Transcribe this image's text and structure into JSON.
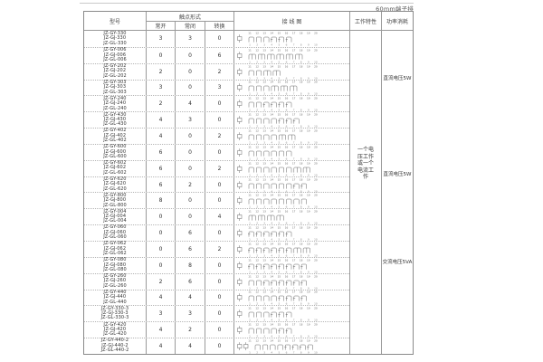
{
  "page": {
    "top_right_label": "60mm端子排"
  },
  "table": {
    "headers": {
      "model": "型号",
      "contact_form": "触点形式",
      "normally_open": "常开",
      "normally_closed": "常闭",
      "changeover": "转换",
      "wiring_diagram": "接 线 图",
      "working_characteristics": "工作特性",
      "power_consumption": "功率消耗"
    },
    "working_characteristics_text": "一个电压工作或一个电流工作",
    "power_notes": [
      "直流电压5W",
      "直流电压5W",
      "交流电压5VA"
    ],
    "diagram": {
      "top_terminals": [
        "11",
        "12",
        "13",
        "14",
        "15",
        "16",
        "17",
        "18",
        "19",
        "20"
      ],
      "bottom_terminals": [
        "1",
        "2",
        "3",
        "4",
        "5",
        "6",
        "7",
        "8",
        "9",
        "10"
      ],
      "coil_icon": "coil-square",
      "no_icon": "normally-open-contact",
      "nc_icon": "normally-closed-contact",
      "co_icon": "changeover-contact"
    },
    "rows": [
      {
        "models": [
          "JZ-GY-330",
          "JZ-GJ-330",
          "JZ-GL-330"
        ],
        "no": 3,
        "nc": 3,
        "co": 0,
        "coils": 1
      },
      {
        "models": [
          "JZ-GY-006",
          "JZ-GJ-006",
          "JZ-GL-006"
        ],
        "no": 0,
        "nc": 0,
        "co": 6,
        "coils": 1
      },
      {
        "models": [
          "JZ-GY-202",
          "JZ-GJ-202",
          "JZ-GL-202"
        ],
        "no": 2,
        "nc": 0,
        "co": 2,
        "coils": 1
      },
      {
        "models": [
          "JZ-GY-303",
          "JZ-GJ-303",
          "JZ-GL-303"
        ],
        "no": 3,
        "nc": 0,
        "co": 3,
        "coils": 1
      },
      {
        "models": [
          "JZ-GY-240",
          "JZ-GJ-240",
          "JZ-GL-240"
        ],
        "no": 2,
        "nc": 4,
        "co": 0,
        "coils": 1
      },
      {
        "models": [
          "JZ-GY-430",
          "JZ-GJ-430",
          "JZ-GL-430"
        ],
        "no": 4,
        "nc": 3,
        "co": 0,
        "coils": 1
      },
      {
        "models": [
          "JZ-GY-402",
          "JZ-GJ-402",
          "JZ-GL-402"
        ],
        "no": 4,
        "nc": 0,
        "co": 2,
        "coils": 1
      },
      {
        "models": [
          "JZ-GY-600",
          "JZ-GJ-600",
          "JZ-GL-600"
        ],
        "no": 6,
        "nc": 0,
        "co": 0,
        "coils": 1
      },
      {
        "models": [
          "JZ-GY-602",
          "JZ-GJ-602",
          "JZ-GL-602"
        ],
        "no": 6,
        "nc": 0,
        "co": 2,
        "coils": 1
      },
      {
        "models": [
          "JZ-GY-620",
          "JZ-GJ-620",
          "JZ-GL-620"
        ],
        "no": 6,
        "nc": 2,
        "co": 0,
        "coils": 1
      },
      {
        "models": [
          "JZ-GY-800",
          "JZ-GJ-800",
          "JZ-GL-800"
        ],
        "no": 8,
        "nc": 0,
        "co": 0,
        "coils": 1
      },
      {
        "models": [
          "JZ-GY-004",
          "JZ-GJ-004",
          "JZ-GL-004"
        ],
        "no": 0,
        "nc": 0,
        "co": 4,
        "coils": 1
      },
      {
        "models": [
          "JZ-GY-060",
          "JZ-GJ-060",
          "JZ-GL-060"
        ],
        "no": 0,
        "nc": 6,
        "co": 0,
        "coils": 1
      },
      {
        "models": [
          "JZ-GY-062",
          "JZ-GJ-062",
          "JZ-GL-062"
        ],
        "no": 0,
        "nc": 6,
        "co": 2,
        "coils": 1
      },
      {
        "models": [
          "JZ-GY-080",
          "JZ-GJ-080",
          "JZ-GL-080"
        ],
        "no": 0,
        "nc": 8,
        "co": 0,
        "coils": 1
      },
      {
        "models": [
          "JZ-GY-260",
          "JZ-GJ-260",
          "JZ-GL-260"
        ],
        "no": 2,
        "nc": 6,
        "co": 0,
        "coils": 1
      },
      {
        "models": [
          "JZ-GY-440",
          "JZ-GJ-440",
          "JZ-GL-440"
        ],
        "no": 4,
        "nc": 4,
        "co": 0,
        "coils": 1
      },
      {
        "models": [
          "JZ-GY-330-3",
          "JZ-GJ-330-3",
          "JZ-GL-330-3"
        ],
        "no": 3,
        "nc": 3,
        "co": 0,
        "coils": 1
      },
      {
        "models": [
          "JZ-GY-420",
          "JZ-GJ-420",
          "JZ-GL-420"
        ],
        "no": 4,
        "nc": 2,
        "co": 0,
        "coils": 1
      },
      {
        "models": [
          "JZ-GY-440-2",
          "JZ-GJ-440-2",
          "JZ-GL-440-2"
        ],
        "no": 4,
        "nc": 4,
        "co": 0,
        "coils": 2
      }
    ]
  }
}
